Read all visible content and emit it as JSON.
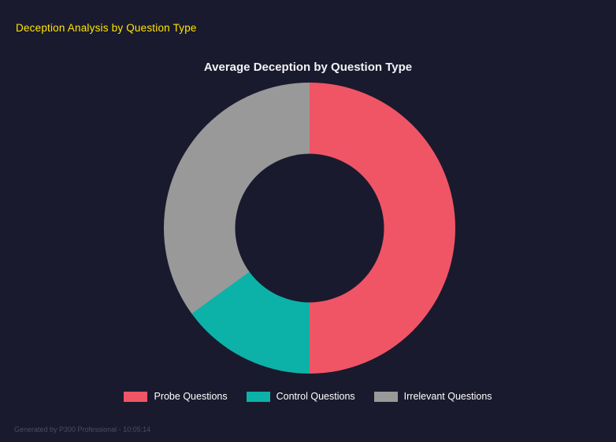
{
  "page": {
    "header": "Deception Analysis by Question Type",
    "footer": "Generated by P300 Professional - 10:05:14"
  },
  "chart_data": {
    "type": "pie",
    "subtype": "donut",
    "title": "Average Deception by Question Type",
    "categories": [
      "Probe Questions",
      "Control Questions",
      "Irrelevant Questions"
    ],
    "values": [
      50,
      15,
      35
    ],
    "values_unit": "percent_of_circle_estimated",
    "colors": [
      "#f05566",
      "#0cb2a8",
      "#999999"
    ],
    "start_angle_deg": 0,
    "direction": "clockwise",
    "inner_radius_ratio": 0.51,
    "legend_position": "bottom",
    "grid": false
  },
  "colors": {
    "background": "#1a1a2e",
    "header_text": "#ffe600",
    "title_text": "#f2f2f6",
    "legend_text": "#ffffff",
    "footer_text": "#4d4d5e"
  }
}
